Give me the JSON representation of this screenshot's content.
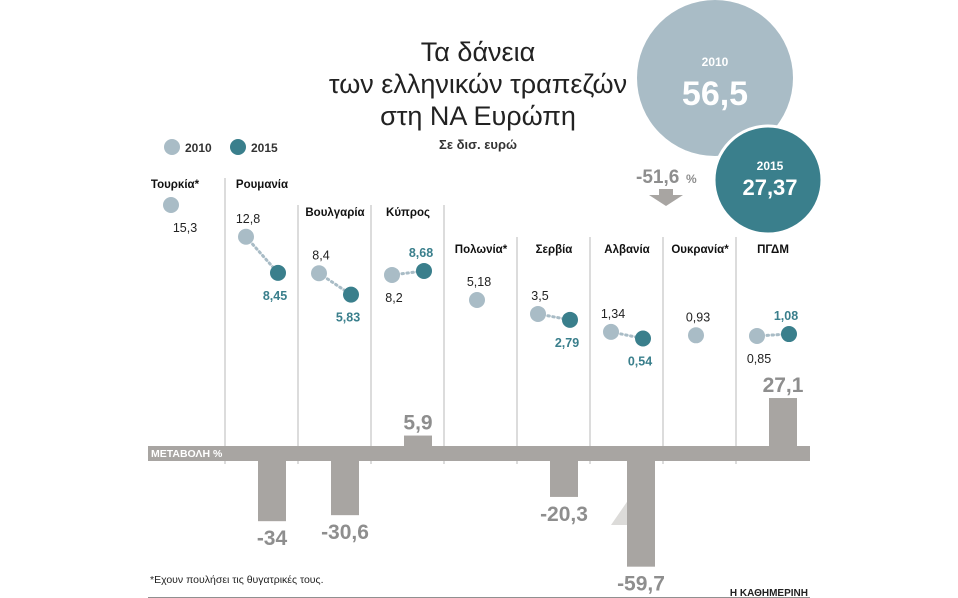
{
  "title_lines": [
    "Τα δάνεια",
    "των ελληνικών τραπεζών",
    "στη ΝΑ Ευρώπη"
  ],
  "subtitle": "Σε δισ. ευρώ",
  "legend": [
    {
      "label": "2010",
      "color": "#a9bcc6"
    },
    {
      "label": "2015",
      "color": "#3a7f8c"
    }
  ],
  "totals": {
    "y2010_label": "2010",
    "y2010_value": "56,5",
    "y2015_label": "2015",
    "y2015_value": "27,37",
    "change": "-51,6",
    "change_unit": "%"
  },
  "axis_label": "ΜΕΤΑΒΟΛΗ %",
  "footnote": "*Εχουν πουλήσει τις θυγατρικές τους.",
  "source": "Η ΚΑΘΗΜΕΡΙΝΗ",
  "colors": {
    "c2010": "#a9bcc6",
    "c2015": "#3a7f8c",
    "bar": "#a8a5a2",
    "axis": "#a8a5a2"
  },
  "chart_data": {
    "type": "scatter",
    "categories": [
      "Τουρκία*",
      "Ρουμανία",
      "Βουλγαρία",
      "Κύπρος",
      "Πολωνία*",
      "Σερβία",
      "Αλβανία",
      "Ουκρανία*",
      "ΠΓΔΜ"
    ],
    "series": [
      {
        "name": "2010",
        "values": [
          15.3,
          12.8,
          8.4,
          8.2,
          5.18,
          3.5,
          1.34,
          0.93,
          0.85
        ],
        "labels": [
          "15,3",
          "12,8",
          "8,4",
          "8,2",
          "5,18",
          "3,5",
          "1,34",
          "0,93",
          "0,85"
        ]
      },
      {
        "name": "2015",
        "values": [
          null,
          8.45,
          5.83,
          8.68,
          null,
          2.79,
          0.54,
          null,
          1.08
        ],
        "labels": [
          "",
          "8,45",
          "5,83",
          "8,68",
          "",
          "2,79",
          "0,54",
          "",
          "1,08"
        ]
      }
    ],
    "change": {
      "name": "ΜΕΤΑΒΟΛΗ %",
      "values": [
        null,
        -34,
        -30.6,
        5.9,
        null,
        -20.3,
        -59.7,
        null,
        27.1
      ],
      "labels": [
        "",
        "-34",
        "-30,6",
        "5,9",
        "",
        "-20,3",
        "-59,7",
        "",
        "27,1"
      ]
    }
  }
}
